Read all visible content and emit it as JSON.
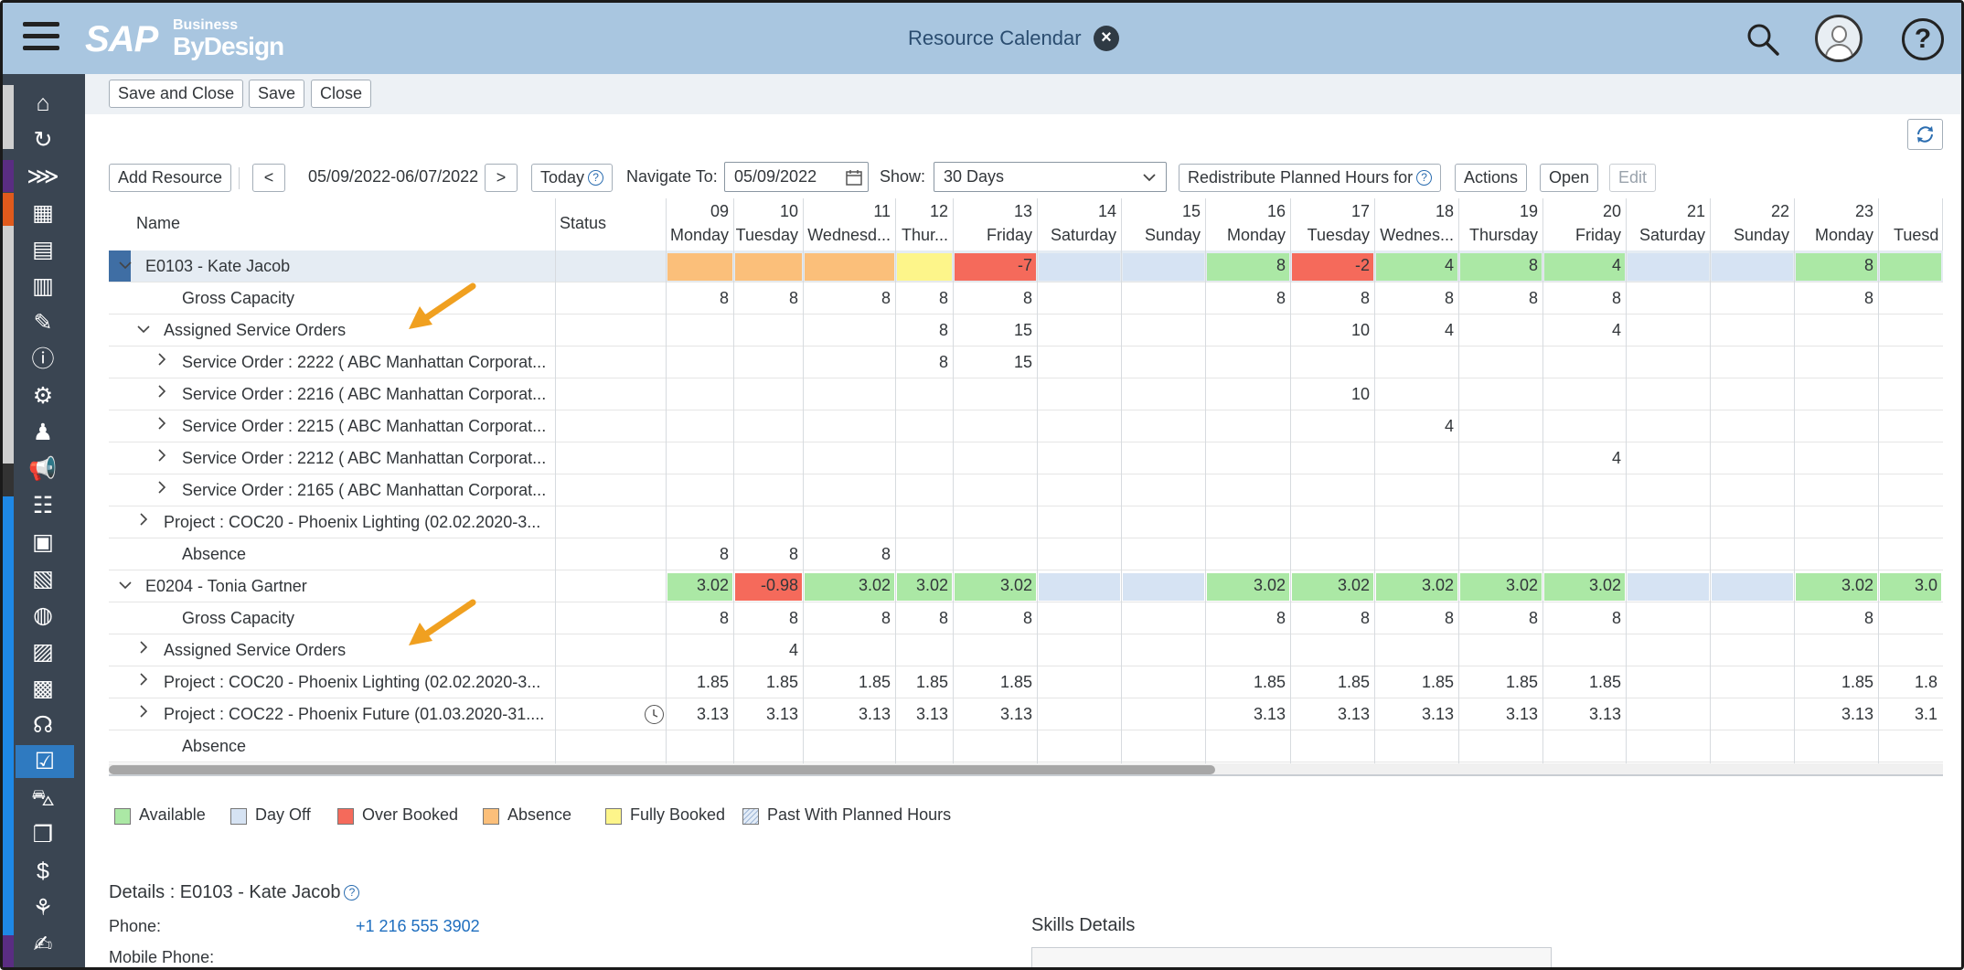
{
  "shell": {
    "logo_sap": "SAP",
    "logo_business": "Business",
    "logo_bydesign": "ByDesign",
    "title": "Resource Calendar"
  },
  "toolbar": {
    "save_close": "Save and Close",
    "save": "Save",
    "close": "Close"
  },
  "calbar": {
    "add_resource": "Add Resource",
    "prev": "<",
    "range": "05/09/2022-06/07/2022",
    "next": ">",
    "today": "Today",
    "navigate_label": "Navigate To:",
    "navigate_value": "05/09/2022",
    "show_label": "Show:",
    "show_value": "30 Days",
    "redistribute": "Redistribute Planned Hours for",
    "actions": "Actions",
    "open": "Open",
    "edit": "Edit"
  },
  "grid": {
    "col_name": "Name",
    "col_status": "Status",
    "days": [
      {
        "d": "09",
        "w": "Monday"
      },
      {
        "d": "10",
        "w": "Tuesday"
      },
      {
        "d": "11",
        "w": "Wednesd..."
      },
      {
        "d": "12",
        "w": "Thur..."
      },
      {
        "d": "13",
        "w": "Friday"
      },
      {
        "d": "14",
        "w": "Saturday"
      },
      {
        "d": "15",
        "w": "Sunday"
      },
      {
        "d": "16",
        "w": "Monday"
      },
      {
        "d": "17",
        "w": "Tuesday"
      },
      {
        "d": "18",
        "w": "Wednes..."
      },
      {
        "d": "19",
        "w": "Thursday"
      },
      {
        "d": "20",
        "w": "Friday"
      },
      {
        "d": "21",
        "w": "Saturday"
      },
      {
        "d": "22",
        "w": "Sunday"
      },
      {
        "d": "23",
        "w": "Monday"
      },
      {
        "d": "",
        "w": "Tuesd"
      }
    ],
    "rows": [
      {
        "label": "E0103 - Kate Jacob",
        "indent": 0,
        "chev": "v",
        "sel": true,
        "cells": [
          "",
          "",
          "",
          "",
          "-7",
          "",
          "",
          "8",
          "-2",
          "4",
          "8",
          "4",
          "",
          "",
          "8",
          ""
        ],
        "colors": [
          "orange",
          "orange",
          "orange",
          "yellow",
          "red",
          "blue",
          "blue",
          "green",
          "red",
          "green",
          "green",
          "green",
          "blue",
          "blue",
          "green",
          "green"
        ]
      },
      {
        "label": "Gross Capacity",
        "indent": 2,
        "chev": "",
        "cells": [
          "8",
          "8",
          "8",
          "8",
          "8",
          "",
          "",
          "8",
          "8",
          "8",
          "8",
          "8",
          "",
          "",
          "8",
          ""
        ]
      },
      {
        "label": "Assigned Service Orders",
        "indent": 1,
        "chev": "v",
        "cells": [
          "",
          "",
          "",
          "8",
          "15",
          "",
          "",
          "",
          "10",
          "4",
          "",
          "4",
          "",
          "",
          "",
          ""
        ]
      },
      {
        "label": "Service Order : 2222 ( ABC Manhattan Corporat...",
        "indent": 2,
        "chev": ">",
        "cells": [
          "",
          "",
          "",
          "8",
          "15",
          "",
          "",
          "",
          "",
          "",
          "",
          "",
          "",
          "",
          "",
          ""
        ]
      },
      {
        "label": "Service Order : 2216 ( ABC Manhattan Corporat...",
        "indent": 2,
        "chev": ">",
        "cells": [
          "",
          "",
          "",
          "",
          "",
          "",
          "",
          "",
          "10",
          "",
          "",
          "",
          "",
          "",
          "",
          ""
        ]
      },
      {
        "label": "Service Order : 2215 ( ABC Manhattan Corporat...",
        "indent": 2,
        "chev": ">",
        "cells": [
          "",
          "",
          "",
          "",
          "",
          "",
          "",
          "",
          "",
          "4",
          "",
          "",
          "",
          "",
          "",
          ""
        ]
      },
      {
        "label": "Service Order : 2212 ( ABC Manhattan Corporat...",
        "indent": 2,
        "chev": ">",
        "cells": [
          "",
          "",
          "",
          "",
          "",
          "",
          "",
          "",
          "",
          "",
          "",
          "4",
          "",
          "",
          "",
          ""
        ]
      },
      {
        "label": "Service Order : 2165 ( ABC Manhattan Corporat...",
        "indent": 2,
        "chev": ">",
        "cells": [
          "",
          "",
          "",
          "",
          "",
          "",
          "",
          "",
          "",
          "",
          "",
          "",
          "",
          "",
          "",
          ""
        ]
      },
      {
        "label": "Project : COC20 - Phoenix Lighting (02.02.2020-3...",
        "indent": 1,
        "chev": ">",
        "cells": [
          "",
          "",
          "",
          "",
          "",
          "",
          "",
          "",
          "",
          "",
          "",
          "",
          "",
          "",
          "",
          ""
        ]
      },
      {
        "label": "Absence",
        "indent": 2,
        "chev": "",
        "cells": [
          "8",
          "8",
          "8",
          "",
          "",
          "",
          "",
          "",
          "",
          "",
          "",
          "",
          "",
          "",
          "",
          ""
        ]
      },
      {
        "label": "E0204 - Tonia Gartner",
        "indent": 0,
        "chev": "v",
        "cells": [
          "3.02",
          "-0.98",
          "3.02",
          "3.02",
          "3.02",
          "",
          "",
          "3.02",
          "3.02",
          "3.02",
          "3.02",
          "3.02",
          "",
          "",
          "3.02",
          "3.0"
        ],
        "colors": [
          "green",
          "red",
          "green",
          "green",
          "green",
          "blue",
          "blue",
          "green",
          "green",
          "green",
          "green",
          "green",
          "blue",
          "blue",
          "green",
          "green"
        ]
      },
      {
        "label": "Gross Capacity",
        "indent": 2,
        "chev": "",
        "cells": [
          "8",
          "8",
          "8",
          "8",
          "8",
          "",
          "",
          "8",
          "8",
          "8",
          "8",
          "8",
          "",
          "",
          "8",
          ""
        ]
      },
      {
        "label": "Assigned Service Orders",
        "indent": 1,
        "chev": ">",
        "cells": [
          "",
          "4",
          "",
          "",
          "",
          "",
          "",
          "",
          "",
          "",
          "",
          "",
          "",
          "",
          "",
          ""
        ]
      },
      {
        "label": "Project : COC20 - Phoenix Lighting (02.02.2020-3...",
        "indent": 1,
        "chev": ">",
        "cells": [
          "1.85",
          "1.85",
          "1.85",
          "1.85",
          "1.85",
          "",
          "",
          "1.85",
          "1.85",
          "1.85",
          "1.85",
          "1.85",
          "",
          "",
          "1.85",
          "1.8"
        ]
      },
      {
        "label": "Project : COC22 - Phoenix Future (01.03.2020-31....",
        "indent": 1,
        "chev": ">",
        "clock": true,
        "cells": [
          "3.13",
          "3.13",
          "3.13",
          "3.13",
          "3.13",
          "",
          "",
          "3.13",
          "3.13",
          "3.13",
          "3.13",
          "3.13",
          "",
          "",
          "3.13",
          "3.1"
        ]
      },
      {
        "label": "Absence",
        "indent": 2,
        "chev": "",
        "cells": [
          "",
          "",
          "",
          "",
          "",
          "",
          "",
          "",
          "",
          "",
          "",
          "",
          "",
          "",
          "",
          ""
        ]
      }
    ]
  },
  "legend": [
    {
      "label": "Available",
      "color": "#abe8a5"
    },
    {
      "label": "Day Off",
      "color": "#d6e3f3"
    },
    {
      "label": "Over Booked",
      "color": "#f56a5b"
    },
    {
      "label": "Absence",
      "color": "#fbbf7a"
    },
    {
      "label": "Fully Booked",
      "color": "#fdf58a"
    },
    {
      "label": "Past With Planned Hours",
      "color": "#e3ecf7"
    }
  ],
  "details": {
    "title": "Details : E0103 - Kate Jacob",
    "phone_label": "Phone:",
    "phone_value": "+1 216 555 3902",
    "mobile_label": "Mobile Phone:",
    "skills_title": "Skills Details"
  }
}
